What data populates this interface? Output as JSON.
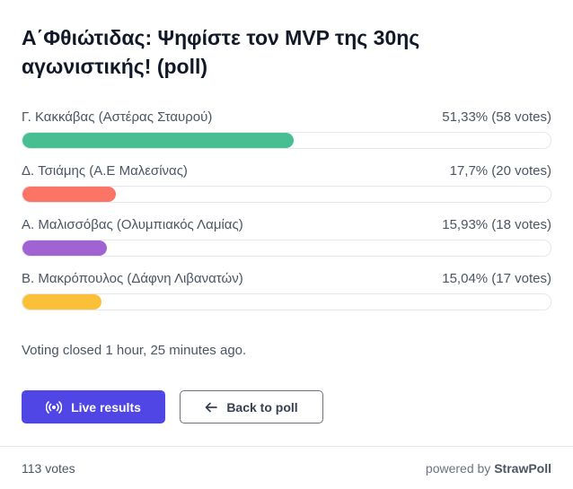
{
  "header": {
    "title": "Α΄Φθιώτιδας: Ψηφίστε τον MVP της 30ης αγωνιστικής! (poll)"
  },
  "options": [
    {
      "label": "Γ. Κακκάβας (Αστέρας Σταυρού)",
      "result": "51,33% (58 votes)",
      "percent": 51.33,
      "color": "#47bf92"
    },
    {
      "label": "Δ. Τσιάμης (Α.Ε Μαλεσίνας)",
      "result": "17,7% (20 votes)",
      "percent": 17.7,
      "color": "#fc7466"
    },
    {
      "label": "Α. Μαλισσόβας (Ολυμπιακός Λαμίας)",
      "result": "15,93% (18 votes)",
      "percent": 15.93,
      "color": "#a163d1"
    },
    {
      "label": "Β. Μακρόπουλος (Δάφνη Λιβανατών)",
      "result": "15,04% (17 votes)",
      "percent": 15.04,
      "color": "#fbbf38"
    }
  ],
  "status": "Voting closed 1 hour, 25 minutes ago.",
  "buttons": {
    "live": "Live results",
    "back": "Back to poll"
  },
  "footer": {
    "votes": "113 votes",
    "powered": "powered by",
    "brand": "StrawPoll"
  }
}
